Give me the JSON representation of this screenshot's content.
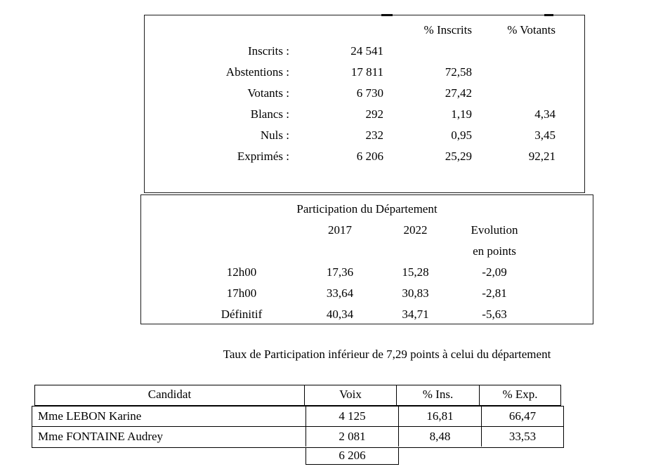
{
  "colors": {
    "background": "#ffffff",
    "text": "#000000",
    "border": "#000000"
  },
  "summary_table": {
    "col_headers": {
      "pct_inscrits": "% Inscrits",
      "pct_votants": "% Votants"
    },
    "rows": [
      {
        "label": "Inscrits :",
        "value": "24 541",
        "pct_inscrits": "",
        "pct_votants": ""
      },
      {
        "label": "Abstentions :",
        "value": "17 811",
        "pct_inscrits": "72,58",
        "pct_votants": ""
      },
      {
        "label": "Votants :",
        "value": "6 730",
        "pct_inscrits": "27,42",
        "pct_votants": ""
      },
      {
        "label": "Blancs :",
        "value": "292",
        "pct_inscrits": "1,19",
        "pct_votants": "4,34"
      },
      {
        "label": "Nuls :",
        "value": "232",
        "pct_inscrits": "0,95",
        "pct_votants": "3,45"
      },
      {
        "label": "Exprimés :",
        "value": "6 206",
        "pct_inscrits": "25,29",
        "pct_votants": "92,21"
      }
    ]
  },
  "participation_table": {
    "title": "Participation du Département",
    "col_headers": {
      "y2017": "2017",
      "y2022": "2022",
      "evolution": "Evolution"
    },
    "evolution_subheader": "en points",
    "rows": [
      {
        "label": "12h00",
        "y2017": "17,36",
        "y2022": "15,28",
        "evolution": "-2,09"
      },
      {
        "label": "17h00",
        "y2017": "33,64",
        "y2022": "30,83",
        "evolution": "-2,81"
      },
      {
        "label": "Définitif",
        "y2017": "40,34",
        "y2022": "34,71",
        "evolution": "-5,63"
      }
    ]
  },
  "note": "Taux de Participation inférieur de 7,29 points à celui du département",
  "candidates_table": {
    "headers": {
      "candidat": "Candidat",
      "voix": "Voix",
      "pct_ins": "% Ins.",
      "pct_exp": "% Exp."
    },
    "rows": [
      {
        "name": "Mme LEBON Karine",
        "voix": "4 125",
        "pct_ins": "16,81",
        "pct_exp": "66,47"
      },
      {
        "name": "Mme FONTAINE Audrey",
        "voix": "2 081",
        "pct_ins": "8,48",
        "pct_exp": "33,53"
      }
    ],
    "total_voix": "6 206"
  }
}
